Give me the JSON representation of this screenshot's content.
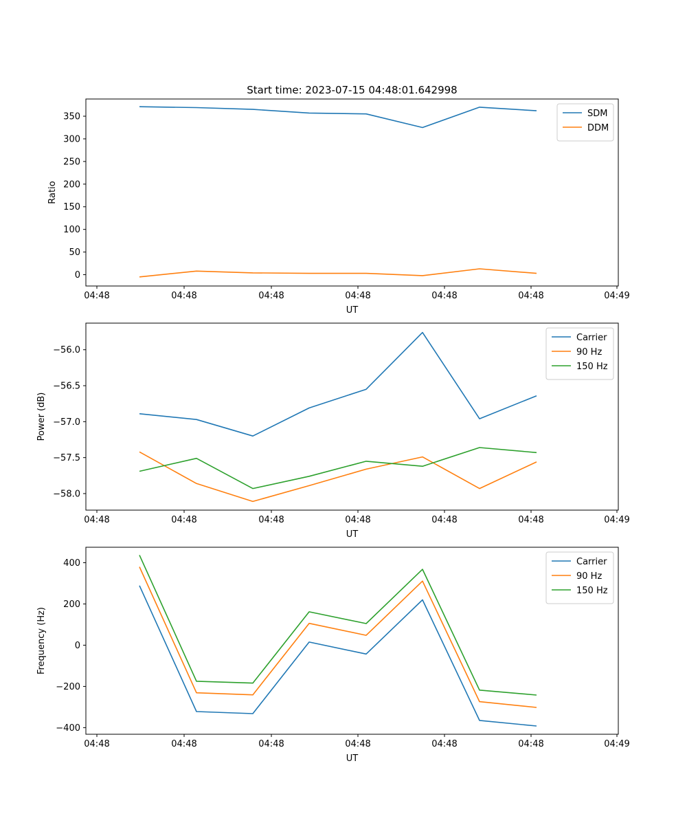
{
  "figure_title": "Start time: 2023-07-15 04:48:01.642998",
  "colors": {
    "blue": "#1f77b4",
    "orange": "#ff7f0e",
    "green": "#2ca02c"
  },
  "chart_data": [
    {
      "type": "line",
      "title": "Start time: 2023-07-15 04:48:01.642998",
      "xlabel": "UT",
      "ylabel": "Ratio",
      "x_ticks": [
        "04:48",
        "04:48",
        "04:48",
        "04:48",
        "04:48",
        "04:48",
        "04:49"
      ],
      "y_ticks": [
        0,
        50,
        100,
        150,
        200,
        250,
        300,
        350
      ],
      "ylim": [
        -25,
        388
      ],
      "legend_position": "top-right",
      "series": [
        {
          "name": "SDM",
          "color": "#1f77b4",
          "values": [
            371,
            369,
            365,
            357,
            355,
            325,
            370,
            362
          ]
        },
        {
          "name": "DDM",
          "color": "#ff7f0e",
          "values": [
            -5,
            8,
            4,
            3,
            3,
            -2,
            13,
            3
          ]
        }
      ]
    },
    {
      "type": "line",
      "title": "",
      "xlabel": "UT",
      "ylabel": "Power (dB)",
      "x_ticks": [
        "04:48",
        "04:48",
        "04:48",
        "04:48",
        "04:48",
        "04:48",
        "04:49"
      ],
      "y_ticks": [
        -58.0,
        -57.5,
        -57.0,
        -56.5,
        -56.0
      ],
      "ylim": [
        -58.23,
        -55.63
      ],
      "legend_position": "top-right",
      "series": [
        {
          "name": "Carrier",
          "color": "#1f77b4",
          "values": [
            -56.89,
            -56.97,
            -57.2,
            -56.81,
            -56.55,
            -55.76,
            -56.96,
            -56.64
          ]
        },
        {
          "name": "90 Hz",
          "color": "#ff7f0e",
          "values": [
            -57.42,
            -57.86,
            -58.11,
            -57.89,
            -57.66,
            -57.49,
            -57.93,
            -57.56
          ]
        },
        {
          "name": "150 Hz",
          "color": "#2ca02c",
          "values": [
            -57.69,
            -57.51,
            -57.93,
            -57.76,
            -57.55,
            -57.62,
            -57.36,
            -57.43
          ]
        }
      ]
    },
    {
      "type": "line",
      "title": "",
      "xlabel": "UT",
      "ylabel": "Frequency (Hz)",
      "x_ticks": [
        "04:48",
        "04:48",
        "04:48",
        "04:48",
        "04:48",
        "04:48",
        "04:49"
      ],
      "y_ticks": [
        -400,
        -200,
        0,
        200,
        400
      ],
      "ylim": [
        -432,
        475
      ],
      "legend_position": "top-right",
      "series": [
        {
          "name": "Carrier",
          "color": "#1f77b4",
          "values": [
            289,
            -322,
            -332,
            15,
            -43,
            220,
            -365,
            -392
          ]
        },
        {
          "name": "90 Hz",
          "color": "#ff7f0e",
          "values": [
            380,
            -231,
            -241,
            106,
            48,
            311,
            -274,
            -302
          ]
        },
        {
          "name": "150 Hz",
          "color": "#2ca02c",
          "values": [
            437,
            -175,
            -184,
            162,
            105,
            368,
            -218,
            -242
          ]
        }
      ]
    }
  ]
}
